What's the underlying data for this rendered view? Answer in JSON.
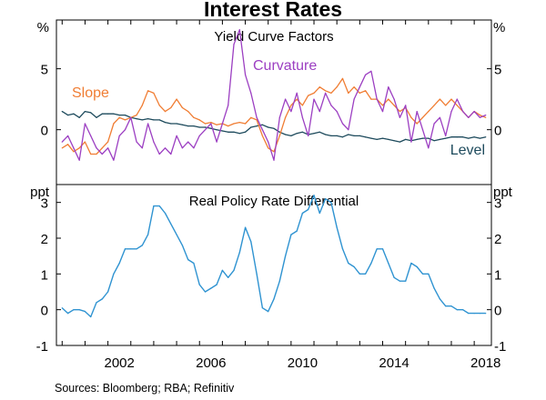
{
  "title": "Interest Rates",
  "source": "Sources:  Bloomberg; RBA; Refinitiv",
  "colors": {
    "slope": "#f07d33",
    "curvature": "#9c3fc2",
    "level": "#1d4a5c",
    "policy": "#2f93d1",
    "axis": "#000000"
  },
  "x_ticks": [
    "2002",
    "2006",
    "2010",
    "2014",
    "2018"
  ],
  "chart_data": [
    {
      "type": "line",
      "title": "Yield Curve Factors",
      "ylabel_left": "%",
      "ylabel_right": "%",
      "ylim": [
        -4.5,
        9
      ],
      "yticks": [
        "5",
        "0"
      ],
      "series": [
        {
          "name": "Curvature",
          "label": "Curvature",
          "x": [
            2000.0,
            2000.25,
            2000.5,
            2000.75,
            2001.0,
            2001.25,
            2001.5,
            2001.75,
            2002.0,
            2002.25,
            2002.5,
            2002.75,
            2003.0,
            2003.25,
            2003.5,
            2003.75,
            2004.0,
            2004.25,
            2004.5,
            2004.75,
            2005.0,
            2005.25,
            2005.5,
            2005.75,
            2006.0,
            2006.25,
            2006.5,
            2006.75,
            2007.0,
            2007.25,
            2007.5,
            2007.75,
            2008.0,
            2008.25,
            2008.5,
            2008.75,
            2009.0,
            2009.25,
            2009.5,
            2009.75,
            2010.0,
            2010.25,
            2010.5,
            2010.75,
            2011.0,
            2011.25,
            2011.5,
            2011.75,
            2012.0,
            2012.25,
            2012.5,
            2012.75,
            2013.0,
            2013.25,
            2013.5,
            2013.75,
            2014.0,
            2014.25,
            2014.5,
            2014.75,
            2015.0,
            2015.25,
            2015.5,
            2015.75,
            2016.0,
            2016.25,
            2016.5,
            2016.75,
            2017.0,
            2017.25,
            2017.5,
            2017.75,
            2018.0,
            2018.25,
            2018.5
          ],
          "values": [
            -1.0,
            -0.5,
            -1.5,
            -2.5,
            0.5,
            -0.5,
            -1.5,
            -2.0,
            -1.5,
            -2.5,
            -0.5,
            0.0,
            1.0,
            -1.0,
            -1.5,
            0.5,
            -1.0,
            -2.0,
            -1.5,
            -2.0,
            -0.5,
            -1.5,
            -1.0,
            -1.5,
            -0.5,
            0.0,
            0.5,
            -1.0,
            0.5,
            2.0,
            7.0,
            8.2,
            4.5,
            3.0,
            1.0,
            0.0,
            -1.0,
            -2.5,
            1.0,
            2.5,
            1.5,
            3.0,
            1.0,
            -0.5,
            2.5,
            1.5,
            3.0,
            2.0,
            1.5,
            0.5,
            0.0,
            2.5,
            3.5,
            4.5,
            4.8,
            2.5,
            1.5,
            3.5,
            2.5,
            1.0,
            2.0,
            -1.0,
            1.5,
            0.0,
            -1.5,
            0.5,
            1.0,
            -0.5,
            1.5,
            2.5,
            1.5,
            1.0,
            1.5,
            1.0,
            1.2
          ]
        },
        {
          "name": "Slope",
          "label": "Slope",
          "x": [
            2000.0,
            2000.25,
            2000.5,
            2000.75,
            2001.0,
            2001.25,
            2001.5,
            2001.75,
            2002.0,
            2002.25,
            2002.5,
            2002.75,
            2003.0,
            2003.25,
            2003.5,
            2003.75,
            2004.0,
            2004.25,
            2004.5,
            2004.75,
            2005.0,
            2005.25,
            2005.5,
            2005.75,
            2006.0,
            2006.25,
            2006.5,
            2006.75,
            2007.0,
            2007.25,
            2007.5,
            2007.75,
            2008.0,
            2008.25,
            2008.5,
            2008.75,
            2009.0,
            2009.25,
            2009.5,
            2009.75,
            2010.0,
            2010.25,
            2010.5,
            2010.75,
            2011.0,
            2011.25,
            2011.5,
            2011.75,
            2012.0,
            2012.25,
            2012.5,
            2012.75,
            2013.0,
            2013.25,
            2013.5,
            2013.75,
            2014.0,
            2014.25,
            2014.5,
            2014.75,
            2015.0,
            2015.25,
            2015.5,
            2015.75,
            2016.0,
            2016.25,
            2016.5,
            2016.75,
            2017.0,
            2017.25,
            2017.5,
            2017.75,
            2018.0,
            2018.25,
            2018.5
          ],
          "values": [
            -1.5,
            -1.2,
            -1.8,
            -1.5,
            -1.0,
            -2.0,
            -2.0,
            -1.5,
            -1.0,
            0.5,
            1.0,
            0.8,
            1.0,
            1.2,
            2.0,
            3.2,
            3.0,
            2.0,
            1.5,
            1.8,
            2.5,
            1.8,
            1.5,
            1.0,
            0.8,
            0.5,
            0.6,
            0.4,
            0.5,
            0.3,
            0.5,
            0.6,
            0.5,
            1.0,
            0.8,
            -0.5,
            -1.5,
            -1.8,
            -0.5,
            1.0,
            2.0,
            2.5,
            2.0,
            2.8,
            3.0,
            3.5,
            3.2,
            3.0,
            3.5,
            4.2,
            3.0,
            3.5,
            3.0,
            3.2,
            2.5,
            2.5,
            2.0,
            2.5,
            2.0,
            1.5,
            1.8,
            1.0,
            0.5,
            1.0,
            1.5,
            2.0,
            2.5,
            2.0,
            2.5,
            2.0,
            1.5,
            1.0,
            1.5,
            1.2,
            1.0
          ]
        },
        {
          "name": "Level",
          "label": "Level",
          "x": [
            2000.0,
            2000.25,
            2000.5,
            2000.75,
            2001.0,
            2001.25,
            2001.5,
            2001.75,
            2002.0,
            2002.25,
            2002.5,
            2002.75,
            2003.0,
            2003.25,
            2003.5,
            2003.75,
            2004.0,
            2004.25,
            2004.5,
            2004.75,
            2005.0,
            2005.25,
            2005.5,
            2005.75,
            2006.0,
            2006.25,
            2006.5,
            2006.75,
            2007.0,
            2007.25,
            2007.5,
            2007.75,
            2008.0,
            2008.25,
            2008.5,
            2008.75,
            2009.0,
            2009.25,
            2009.5,
            2009.75,
            2010.0,
            2010.25,
            2010.5,
            2010.75,
            2011.0,
            2011.25,
            2011.5,
            2011.75,
            2012.0,
            2012.25,
            2012.5,
            2012.75,
            2013.0,
            2013.25,
            2013.5,
            2013.75,
            2014.0,
            2014.25,
            2014.5,
            2014.75,
            2015.0,
            2015.25,
            2015.5,
            2015.75,
            2016.0,
            2016.25,
            2016.5,
            2016.75,
            2017.0,
            2017.25,
            2017.5,
            2017.75,
            2018.0,
            2018.25,
            2018.5
          ],
          "values": [
            1.5,
            1.2,
            1.3,
            1.0,
            1.5,
            1.4,
            1.0,
            1.3,
            1.3,
            1.3,
            1.2,
            1.2,
            1.0,
            0.9,
            0.8,
            0.9,
            0.8,
            0.8,
            0.6,
            0.5,
            0.5,
            0.4,
            0.3,
            0.3,
            0.2,
            0.2,
            0.1,
            0.0,
            -0.1,
            -0.2,
            -0.2,
            -0.3,
            -0.2,
            0.2,
            0.3,
            0.4,
            0.2,
            0.1,
            -0.2,
            -0.4,
            -0.5,
            -0.3,
            -0.2,
            -0.4,
            -0.3,
            -0.2,
            -0.4,
            -0.5,
            -0.5,
            -0.6,
            -0.4,
            -0.5,
            -0.5,
            -0.6,
            -0.7,
            -0.8,
            -0.7,
            -0.8,
            -0.9,
            -1.0,
            -0.8,
            -0.9,
            -0.8,
            -0.7,
            -0.7,
            -0.9,
            -0.8,
            -0.7,
            -0.6,
            -0.6,
            -0.6,
            -0.7,
            -0.6,
            -0.7,
            -0.6
          ]
        }
      ]
    },
    {
      "type": "line",
      "title": "Real Policy Rate Differential",
      "ylabel_left": "ppt",
      "ylabel_right": "ppt",
      "ylim": [
        -1,
        3.5
      ],
      "yticks": [
        "3",
        "2",
        "1",
        "0",
        "-1"
      ],
      "series": [
        {
          "name": "Real Policy Rate Differential",
          "x": [
            2000.0,
            2000.25,
            2000.5,
            2000.75,
            2001.0,
            2001.25,
            2001.5,
            2001.75,
            2002.0,
            2002.25,
            2002.5,
            2002.75,
            2003.0,
            2003.25,
            2003.5,
            2003.75,
            2004.0,
            2004.25,
            2004.5,
            2004.75,
            2005.0,
            2005.25,
            2005.5,
            2005.75,
            2006.0,
            2006.25,
            2006.5,
            2006.75,
            2007.0,
            2007.25,
            2007.5,
            2007.75,
            2008.0,
            2008.25,
            2008.5,
            2008.75,
            2009.0,
            2009.25,
            2009.5,
            2009.75,
            2010.0,
            2010.25,
            2010.5,
            2010.75,
            2011.0,
            2011.25,
            2011.5,
            2011.75,
            2012.0,
            2012.25,
            2012.5,
            2012.75,
            2013.0,
            2013.25,
            2013.5,
            2013.75,
            2014.0,
            2014.25,
            2014.5,
            2014.75,
            2015.0,
            2015.25,
            2015.5,
            2015.75,
            2016.0,
            2016.25,
            2016.5,
            2016.75,
            2017.0,
            2017.25,
            2017.5,
            2017.75,
            2018.0,
            2018.25,
            2018.5
          ],
          "values": [
            0.05,
            -0.1,
            0.0,
            0.0,
            -0.05,
            -0.2,
            0.2,
            0.3,
            0.5,
            1.0,
            1.3,
            1.7,
            1.7,
            1.7,
            1.8,
            2.1,
            2.9,
            2.9,
            2.7,
            2.4,
            2.1,
            1.8,
            1.4,
            1.3,
            0.7,
            0.5,
            0.6,
            0.7,
            1.1,
            0.9,
            1.1,
            1.6,
            2.3,
            1.9,
            1.0,
            0.05,
            -0.05,
            0.3,
            0.8,
            1.5,
            2.1,
            2.2,
            2.7,
            2.8,
            3.2,
            2.7,
            3.1,
            3.0,
            2.3,
            1.7,
            1.3,
            1.2,
            1.0,
            1.0,
            1.3,
            1.7,
            1.7,
            1.3,
            0.9,
            0.8,
            0.8,
            1.3,
            1.2,
            1.0,
            1.0,
            0.6,
            0.3,
            0.1,
            0.1,
            0.0,
            0.0,
            -0.1,
            -0.1,
            -0.1,
            -0.1
          ]
        }
      ]
    }
  ]
}
